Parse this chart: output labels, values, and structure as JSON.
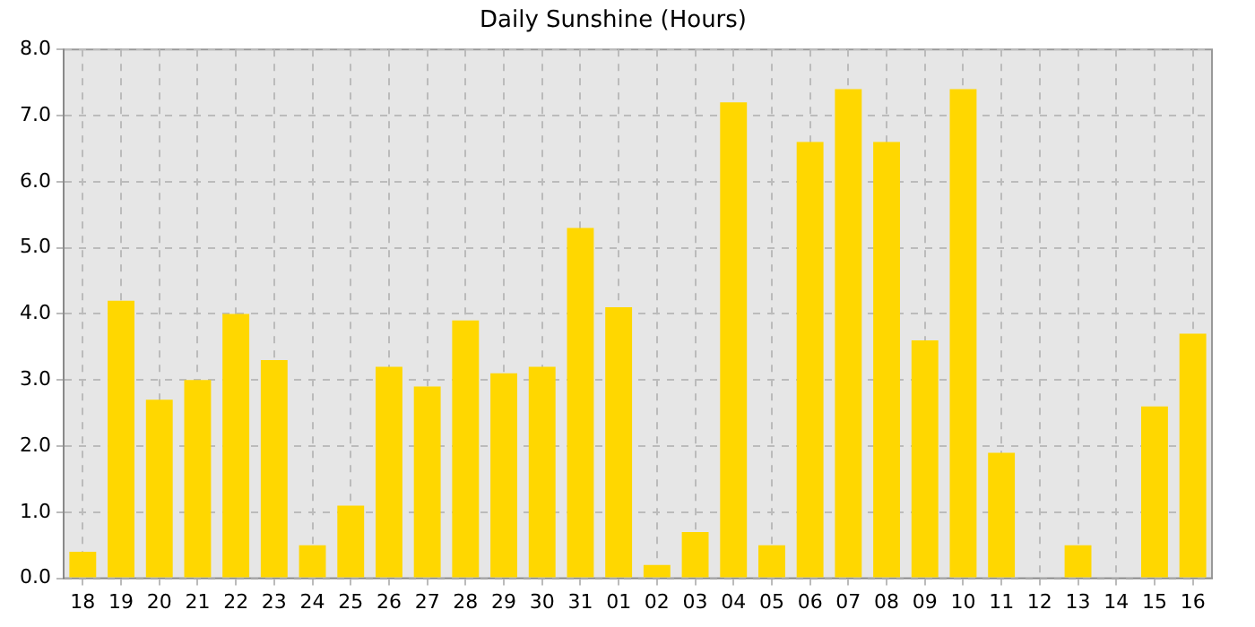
{
  "chart_data": {
    "type": "bar",
    "title": "Daily Sunshine (Hours)",
    "categories": [
      "18",
      "19",
      "20",
      "21",
      "22",
      "23",
      "24",
      "25",
      "26",
      "27",
      "28",
      "29",
      "30",
      "31",
      "01",
      "02",
      "03",
      "04",
      "05",
      "06",
      "07",
      "08",
      "09",
      "10",
      "11",
      "12",
      "13",
      "14",
      "15",
      "16"
    ],
    "values": [
      0.4,
      4.2,
      2.7,
      3.0,
      4.0,
      3.3,
      0.5,
      1.1,
      3.2,
      2.9,
      3.9,
      3.1,
      3.2,
      5.3,
      4.1,
      0.2,
      0.7,
      7.2,
      0.5,
      6.6,
      7.4,
      6.6,
      3.6,
      7.4,
      1.9,
      0,
      0.5,
      0,
      2.6,
      3.7
    ],
    "color": "#ffd700",
    "ylim": [
      0,
      8
    ],
    "yticks": [
      {
        "value": 0,
        "label": "0.0"
      },
      {
        "value": 1,
        "label": "1.0"
      },
      {
        "value": 2,
        "label": "2.0"
      },
      {
        "value": 3,
        "label": "3.0"
      },
      {
        "value": 4,
        "label": "4.0"
      },
      {
        "value": 5,
        "label": "5.0"
      },
      {
        "value": 6,
        "label": "6.0"
      },
      {
        "value": 7,
        "label": "7.0"
      },
      {
        "value": 8,
        "label": "8.0"
      }
    ],
    "grid": true
  }
}
